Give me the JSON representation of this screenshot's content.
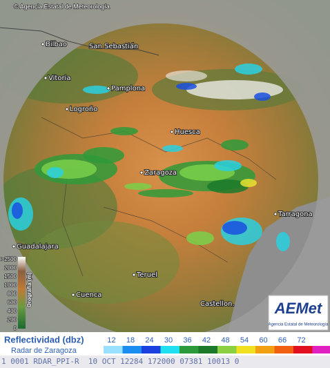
{
  "header": {
    "copyright": "© Agencia Estatal de Meteorología"
  },
  "map": {
    "cities": [
      "Bilbao",
      "San Sebastián",
      "Vitoria",
      "Pamplona",
      "Logroño",
      "Huesca",
      "Zaragoza",
      "Tarragona",
      "Guadalajara",
      "Teruel",
      "Cuenca",
      "Castellon."
    ]
  },
  "orography_legend": {
    "title": "Orografía (m)",
    "labels": [
      ">2500",
      2000,
      1500,
      1000,
      800,
      600,
      400,
      200,
      0
    ]
  },
  "reflectivity_legend": {
    "title": "Reflectividad (dbz)",
    "subtitle": "Radar de Zaragoza",
    "values": [
      12,
      18,
      24,
      30,
      36,
      42,
      48,
      54,
      60,
      66,
      72
    ]
  },
  "logo": {
    "name": "AEMet",
    "caption": "Agencia Estatal de Meteorología"
  },
  "status_line": "1 0001 RDAR_PPI-R  10 OCT 12284 172000 07381 10013 0"
}
